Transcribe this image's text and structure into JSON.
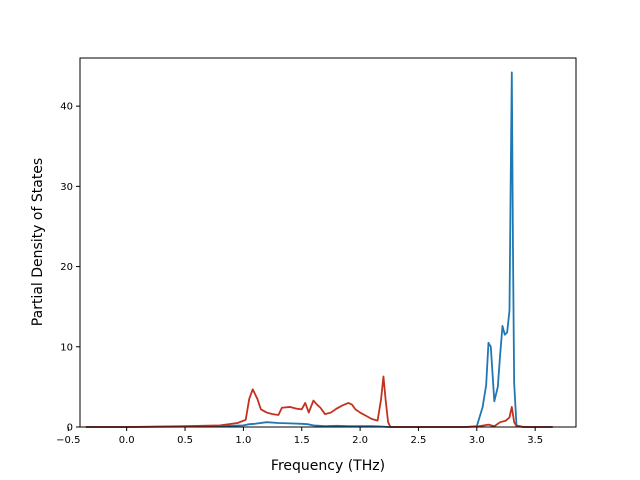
{
  "chart_data": {
    "type": "line",
    "title": "",
    "xlabel": "Frequency (THz)",
    "ylabel": "Partial Density of States",
    "xlim": [
      -0.4,
      3.85
    ],
    "ylim": [
      0,
      46
    ],
    "xticks": [
      -0.5,
      0.0,
      0.5,
      1.0,
      1.5,
      2.0,
      2.5,
      3.0,
      3.5
    ],
    "xtick_labels": [
      "−0.5",
      "0.0",
      "0.5",
      "1.0",
      "1.5",
      "2.0",
      "2.5",
      "3.0",
      "3.5"
    ],
    "yticks": [
      0,
      10,
      20,
      30,
      40
    ],
    "ytick_labels": [
      "0",
      "10",
      "20",
      "30",
      "40"
    ],
    "grid": false,
    "legend": "none",
    "series": [
      {
        "color": "#1f77b4",
        "x": [
          -0.35,
          0.0,
          0.5,
          0.8,
          1.0,
          1.05,
          1.1,
          1.2,
          1.3,
          1.4,
          1.5,
          1.55,
          1.6,
          1.7,
          1.8,
          1.9,
          2.0,
          2.1,
          2.2,
          2.24,
          2.26,
          2.3,
          2.5,
          2.9,
          3.0,
          3.05,
          3.08,
          3.1,
          3.12,
          3.15,
          3.18,
          3.2,
          3.22,
          3.24,
          3.26,
          3.28,
          3.29,
          3.3,
          3.31,
          3.32,
          3.34,
          3.4,
          3.65
        ],
        "y": [
          0,
          0,
          0.05,
          0.1,
          0.2,
          0.35,
          0.4,
          0.6,
          0.5,
          0.45,
          0.4,
          0.35,
          0.2,
          0.1,
          0.15,
          0.1,
          0.1,
          0.1,
          0.05,
          0.0,
          0,
          0,
          0,
          0,
          0.1,
          2.5,
          5.2,
          10.5,
          10.0,
          3.2,
          5.0,
          9.0,
          12.6,
          11.5,
          11.8,
          14.5,
          30.0,
          44.2,
          22.0,
          5.5,
          0.2,
          0,
          0
        ]
      },
      {
        "color": "#c1331f",
        "x": [
          -0.35,
          0.0,
          0.5,
          0.8,
          0.95,
          1.02,
          1.05,
          1.08,
          1.12,
          1.15,
          1.2,
          1.25,
          1.3,
          1.33,
          1.4,
          1.45,
          1.5,
          1.53,
          1.56,
          1.6,
          1.63,
          1.66,
          1.7,
          1.75,
          1.8,
          1.85,
          1.9,
          1.93,
          1.96,
          2.0,
          2.05,
          2.1,
          2.15,
          2.18,
          2.2,
          2.22,
          2.24,
          2.26,
          2.3,
          2.5,
          2.9,
          3.0,
          3.1,
          3.15,
          3.2,
          3.25,
          3.28,
          3.3,
          3.32,
          3.34,
          3.4,
          3.65
        ],
        "y": [
          0,
          0,
          0.1,
          0.2,
          0.5,
          0.9,
          3.5,
          4.7,
          3.5,
          2.2,
          1.8,
          1.6,
          1.5,
          2.4,
          2.5,
          2.3,
          2.2,
          3.0,
          1.8,
          3.3,
          2.8,
          2.4,
          1.6,
          1.8,
          2.3,
          2.7,
          3.0,
          2.8,
          2.2,
          1.8,
          1.4,
          1.0,
          0.8,
          3.5,
          6.3,
          3.2,
          0.6,
          0.0,
          0,
          0,
          0,
          0.05,
          0.3,
          0.1,
          0.6,
          0.8,
          1.2,
          2.5,
          0.6,
          0.1,
          0,
          0
        ]
      }
    ]
  }
}
